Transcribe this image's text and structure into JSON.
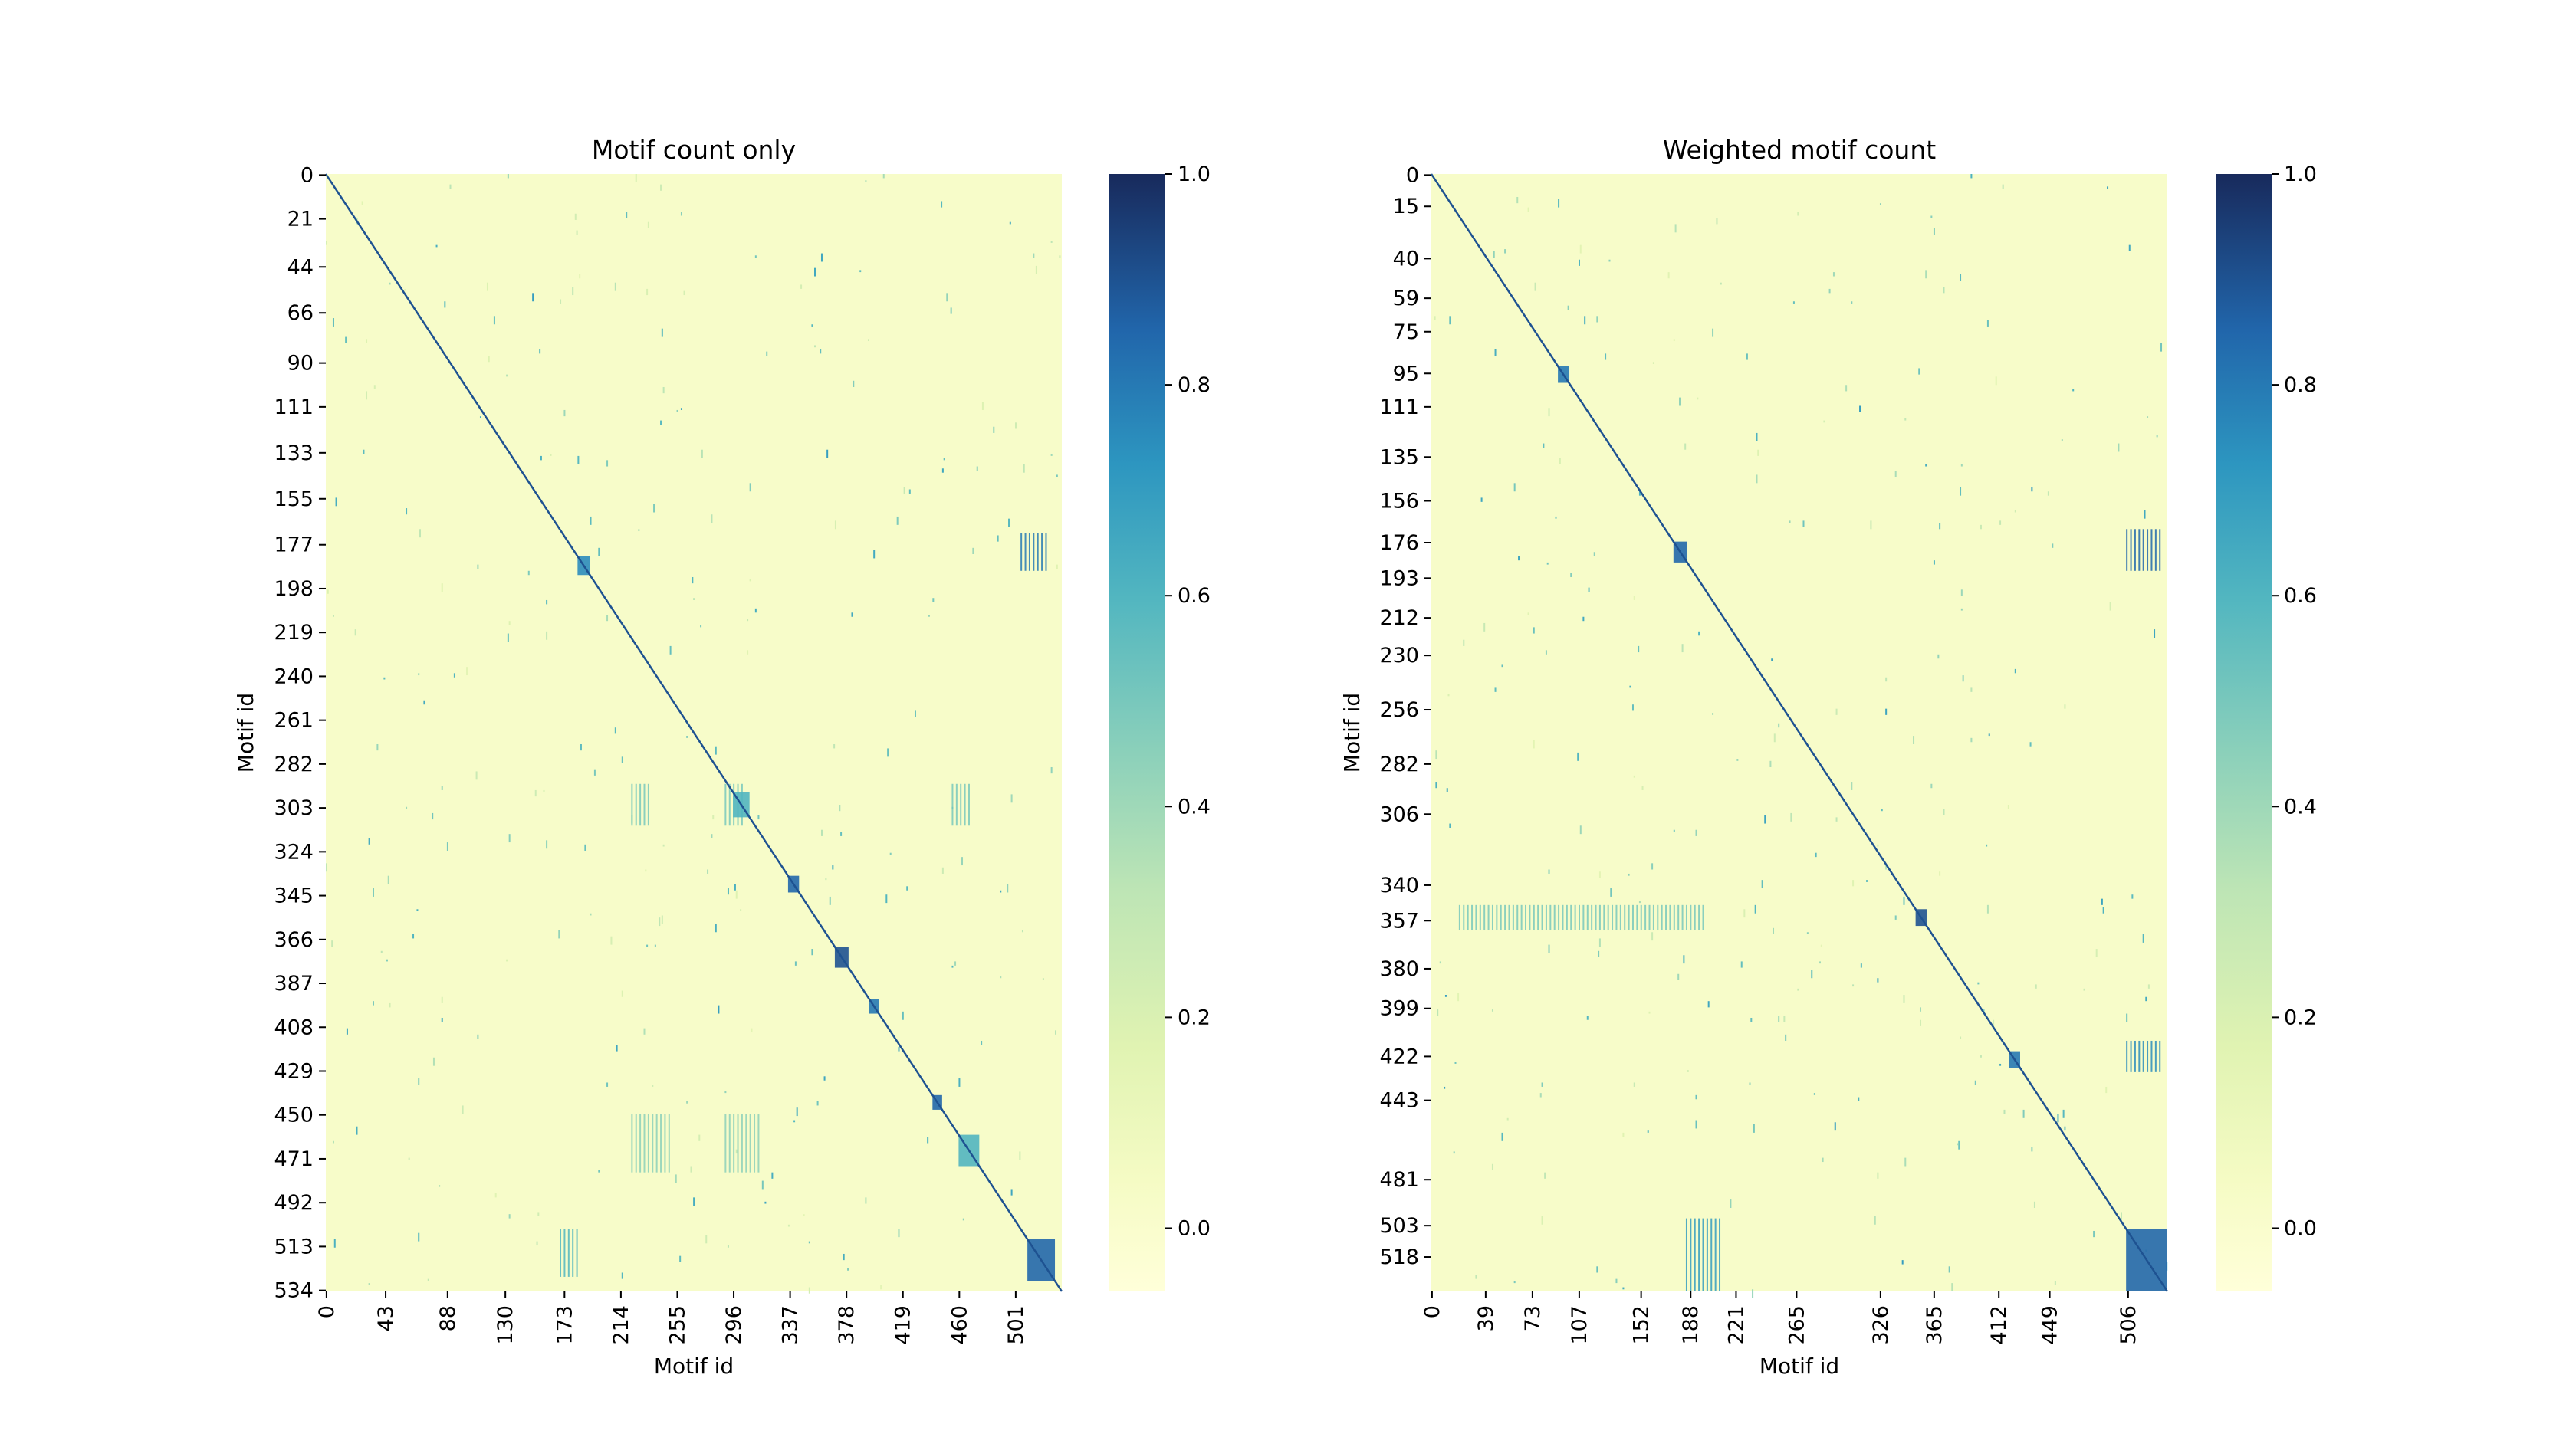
{
  "chart_data": [
    {
      "type": "heatmap",
      "title": "Motif count only",
      "xlabel": "Motif id",
      "ylabel": "Motif id",
      "n": 535,
      "xticks": [
        0,
        43,
        88,
        130,
        173,
        214,
        255,
        296,
        337,
        378,
        419,
        460,
        501
      ],
      "yticks": [
        0,
        21,
        44,
        66,
        90,
        111,
        133,
        155,
        177,
        198,
        219,
        240,
        261,
        282,
        303,
        324,
        345,
        366,
        387,
        408,
        429,
        450,
        471,
        492,
        513,
        534
      ],
      "colorbar": {
        "vmin": -0.06,
        "vmax": 1.0,
        "ticks": [
          0.0,
          0.2,
          0.4,
          0.6,
          0.8,
          1.0
        ]
      },
      "diagonal_value": 1.0,
      "background_value": 0.02,
      "blocks": [
        {
          "from": 510,
          "to": 530,
          "value": 0.85
        },
        {
          "from": 370,
          "to": 380,
          "value": 0.9
        },
        {
          "from": 395,
          "to": 402,
          "value": 0.8
        },
        {
          "from": 336,
          "to": 344,
          "value": 0.85
        },
        {
          "from": 183,
          "to": 192,
          "value": 0.75
        },
        {
          "from": 296,
          "to": 308,
          "value": 0.6
        },
        {
          "from": 441,
          "to": 448,
          "value": 0.85
        },
        {
          "from": 460,
          "to": 475,
          "value": 0.6
        }
      ],
      "col_bands": [
        {
          "rows": [
            292,
            312
          ],
          "cols": [
            222,
            235
          ],
          "value": 0.5
        },
        {
          "rows": [
            292,
            312
          ],
          "cols": [
            290,
            305
          ],
          "value": 0.5
        },
        {
          "rows": [
            292,
            312
          ],
          "cols": [
            455,
            470
          ],
          "value": 0.5
        },
        {
          "rows": [
            450,
            478
          ],
          "cols": [
            222,
            250
          ],
          "value": 0.45
        },
        {
          "rows": [
            450,
            478
          ],
          "cols": [
            290,
            315
          ],
          "value": 0.45
        },
        {
          "rows": [
            172,
            190
          ],
          "cols": [
            505,
            525
          ],
          "value": 0.8
        },
        {
          "rows": [
            505,
            528
          ],
          "cols": [
            170,
            185
          ],
          "value": 0.6
        }
      ]
    },
    {
      "type": "heatmap",
      "title": "Weighted motif count",
      "xlabel": "Motif id",
      "ylabel": "Motif id",
      "n": 535,
      "xticks": [
        0,
        39,
        73,
        107,
        152,
        188,
        221,
        265,
        326,
        365,
        412,
        449,
        506
      ],
      "yticks": [
        0,
        15,
        40,
        59,
        75,
        95,
        111,
        135,
        156,
        176,
        193,
        212,
        230,
        256,
        282,
        306,
        340,
        357,
        380,
        399,
        422,
        443,
        481,
        503,
        518
      ],
      "colorbar": {
        "vmin": -0.06,
        "vmax": 1.0,
        "ticks": [
          0.0,
          0.2,
          0.4,
          0.6,
          0.8,
          1.0
        ]
      },
      "diagonal_value": 1.0,
      "background_value": 0.02,
      "blocks": [
        {
          "from": 505,
          "to": 535,
          "value": 0.85
        },
        {
          "from": 352,
          "to": 360,
          "value": 0.9
        },
        {
          "from": 92,
          "to": 100,
          "value": 0.8
        },
        {
          "from": 176,
          "to": 186,
          "value": 0.85
        },
        {
          "from": 420,
          "to": 428,
          "value": 0.8
        }
      ],
      "col_bands": [
        {
          "rows": [
            170,
            190
          ],
          "cols": [
            505,
            530
          ],
          "value": 0.85
        },
        {
          "rows": [
            500,
            535
          ],
          "cols": [
            185,
            210
          ],
          "value": 0.7
        },
        {
          "rows": [
            350,
            362
          ],
          "cols": [
            20,
            200
          ],
          "value": 0.5
        },
        {
          "rows": [
            415,
            430
          ],
          "cols": [
            505,
            530
          ],
          "value": 0.75
        }
      ]
    }
  ]
}
